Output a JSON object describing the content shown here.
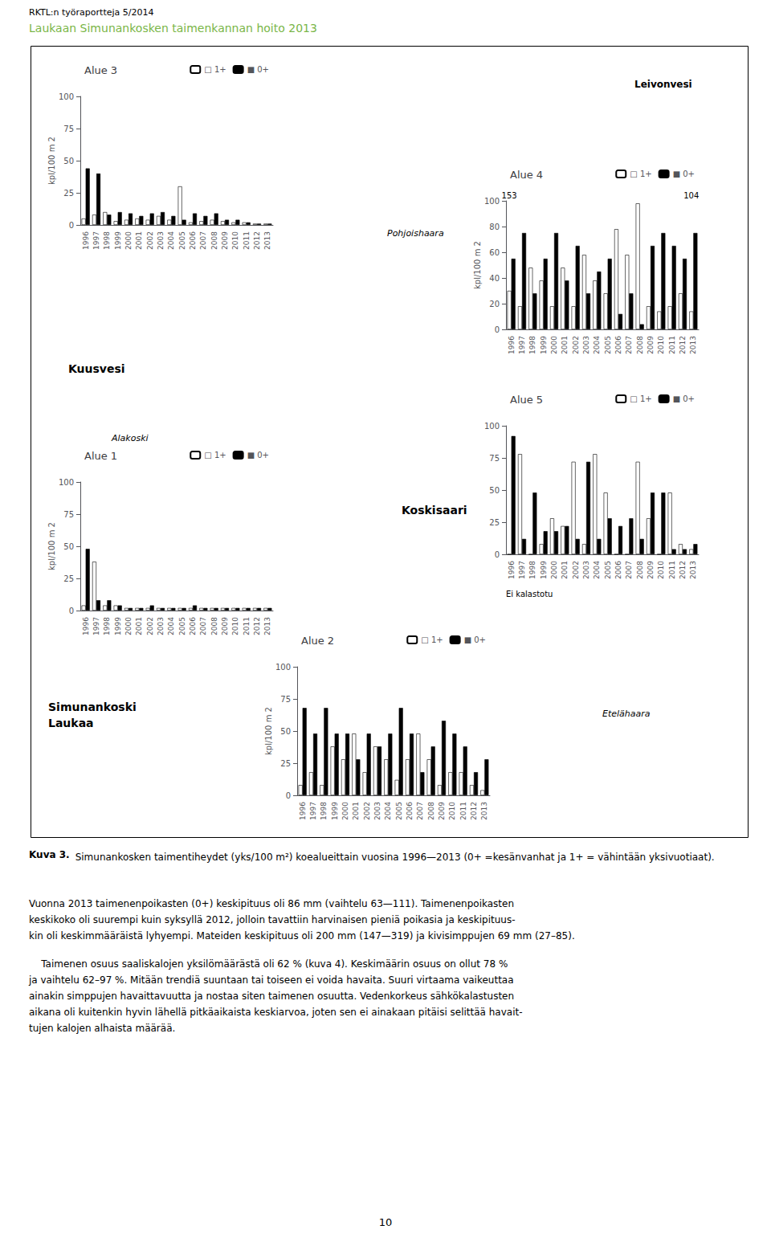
{
  "chart_data": [
    {
      "type": "bar",
      "title": "Alue 3",
      "ylabel": "kpl/100 m 2",
      "categories": [
        1996,
        1997,
        1998,
        1999,
        2000,
        2001,
        2002,
        2003,
        2004,
        2005,
        2006,
        2007,
        2008,
        2009,
        2010,
        2011,
        2012,
        2013
      ],
      "series": [
        {
          "name": "□ 1+",
          "color": "#ffffff",
          "values": [
            5,
            8,
            10,
            3,
            4,
            5,
            4,
            7,
            4,
            30,
            2,
            3,
            4,
            3,
            2,
            2,
            1,
            1
          ]
        },
        {
          "name": "■ 0+",
          "color": "#000000",
          "values": [
            44,
            40,
            8,
            10,
            9,
            7,
            9,
            10,
            7,
            4,
            9,
            7,
            9,
            4,
            4,
            2,
            1,
            1
          ]
        }
      ],
      "ylim": [
        0,
        100
      ],
      "yticks": [
        0,
        25,
        50,
        75,
        100
      ],
      "grid": false,
      "legend": "upper right"
    },
    {
      "type": "bar",
      "title": "Alue 4",
      "ylabel": "kpl/100 m 2",
      "categories": [
        1996,
        1997,
        1998,
        1999,
        2000,
        2001,
        2002,
        2003,
        2004,
        2005,
        2006,
        2007,
        2008,
        2009,
        2010,
        2011,
        2012,
        2013
      ],
      "series": [
        {
          "name": "□ 1+",
          "color": "#ffffff",
          "values": [
            30,
            18,
            48,
            38,
            18,
            48,
            18,
            58,
            38,
            28,
            78,
            58,
            98,
            18,
            14,
            18,
            28,
            14
          ]
        },
        {
          "name": "■ 0+",
          "color": "#000000",
          "values": [
            55,
            75,
            28,
            55,
            75,
            38,
            65,
            28,
            45,
            55,
            12,
            28,
            4,
            65,
            75,
            65,
            55,
            75
          ]
        }
      ],
      "ylim": [
        0,
        100
      ],
      "yticks": [
        0,
        20,
        40,
        60,
        80,
        100
      ],
      "grid": false,
      "legend": "upper right",
      "annotations": [
        {
          "text": "153",
          "x": 1996
        },
        {
          "text": "104",
          "x": 2013
        }
      ]
    },
    {
      "type": "bar",
      "title": "Alue 5",
      "categories": [
        1996,
        1997,
        1998,
        1999,
        2000,
        2001,
        2002,
        2003,
        2004,
        2005,
        2006,
        2007,
        2008,
        2009,
        2010,
        2011,
        2012,
        2013
      ],
      "series": [
        {
          "name": "□ 1+",
          "color": "#ffffff",
          "values": [
            0,
            78,
            0,
            8,
            28,
            22,
            72,
            8,
            78,
            48,
            0,
            0,
            72,
            28,
            0,
            48,
            8,
            4
          ]
        },
        {
          "name": "■ 0+",
          "color": "#000000",
          "values": [
            92,
            12,
            48,
            18,
            18,
            22,
            12,
            72,
            12,
            28,
            22,
            28,
            12,
            48,
            48,
            4,
            4,
            8
          ]
        }
      ],
      "ylim": [
        0,
        100
      ],
      "yticks": [
        0,
        25,
        50,
        75,
        100
      ],
      "grid": false,
      "legend": "upper right",
      "annotations": [
        {
          "text": "Ei kalastotu"
        }
      ]
    },
    {
      "type": "bar",
      "title": "Alue 1",
      "ylabel": "kpl/100 m 2",
      "categories": [
        1996,
        1997,
        1998,
        1999,
        2000,
        2001,
        2002,
        2003,
        2004,
        2005,
        2006,
        2007,
        2008,
        2009,
        2010,
        2011,
        2012,
        2013
      ],
      "series": [
        {
          "name": "□ 1+",
          "color": "#ffffff",
          "values": [
            4,
            38,
            4,
            4,
            2,
            2,
            2,
            2,
            2,
            2,
            2,
            2,
            2,
            2,
            2,
            2,
            2,
            2
          ]
        },
        {
          "name": "■ 0+",
          "color": "#000000",
          "values": [
            48,
            8,
            8,
            4,
            2,
            2,
            4,
            2,
            2,
            2,
            4,
            2,
            2,
            2,
            2,
            2,
            2,
            2
          ]
        }
      ],
      "ylim": [
        0,
        100
      ],
      "yticks": [
        0,
        25,
        50,
        75,
        100
      ],
      "grid": false,
      "legend": "upper right"
    },
    {
      "type": "bar",
      "title": "Alue 2",
      "ylabel": "kpl/100 m 2",
      "categories": [
        1996,
        1997,
        1998,
        1999,
        2000,
        2001,
        2002,
        2003,
        2004,
        2005,
        2006,
        2007,
        2008,
        2009,
        2010,
        2011,
        2012,
        2013
      ],
      "series": [
        {
          "name": "□ 1+",
          "color": "#ffffff",
          "values": [
            8,
            18,
            8,
            38,
            28,
            48,
            18,
            38,
            28,
            12,
            28,
            48,
            28,
            8,
            18,
            18,
            8,
            4
          ]
        },
        {
          "name": "■ 0+",
          "color": "#000000",
          "values": [
            68,
            48,
            68,
            48,
            48,
            28,
            48,
            38,
            48,
            68,
            48,
            18,
            38,
            58,
            48,
            38,
            18,
            28
          ]
        }
      ],
      "ylim": [
        0,
        100
      ],
      "yticks": [
        0,
        25,
        50,
        75,
        100
      ],
      "grid": false,
      "legend": "upper right"
    }
  ],
  "annotations": [
    {
      "text": "RKTL:n työraportteja 5/2014",
      "color": "#000000"
    },
    {
      "text": "Laukaan Simunankosken taimenkannan hoito 2013",
      "color": "#7ab648"
    },
    {
      "text": "Leivonvesi"
    },
    {
      "text": "Pohjoishaara"
    },
    {
      "text": "Kuusvesi"
    },
    {
      "text": "Alakoski"
    },
    {
      "text": "Koskisaari"
    },
    {
      "text": "Etelähaara"
    },
    {
      "text": "Simunankoski\nLaukaa"
    },
    {
      "text": "Kuva 3."
    },
    {
      "text": "  Simunankosken taimentiheydet (yks/100 m²) koealueittain vuosina 1996—2013 (0+ =kesänvanhat ja 1+ = vähintään yksivuotiaat)."
    },
    {
      "text": "Vuonna 2013 taimenenpoikasten (0+) keskipituus oli 86 mm (vaihtelu 63—111). Taimenenpoikasten\nkeskikoko oli suurempi kuin syksyllä 2012, jolloin tavattiin harvinaisen pieniä poikasia ja keskipituus-\nkin oli keskimmääräistä lyhyempi. Mateiden keskipituus oli 200 mm (147—319) ja kivisimppujen 69 mm (27–85)."
    },
    {
      "text": "    Taimenen osuus saaliskalojen yksilömäärästä oli 62 % (kuva 4). Keskimäärin osuus on ollut 78 %\nja vaihtelu 62–97 %. Mitään trendiä suuntaan tai toiseen ei voida havaita. Suuri virtaama vaikeuttaa\nainakin simppujen havaittavuutta ja nostaa siten taimenen osuutta. Vedenkorkeus sähkökalastusten\naikana oli kuitenkin hyvin lähellä pitkäaikaista keskiarvoa, joten sen ei ainakaan pitäisi selittää havait-\ntujen kalojen alhaista määrää."
    },
    {
      "text": "10"
    }
  ]
}
